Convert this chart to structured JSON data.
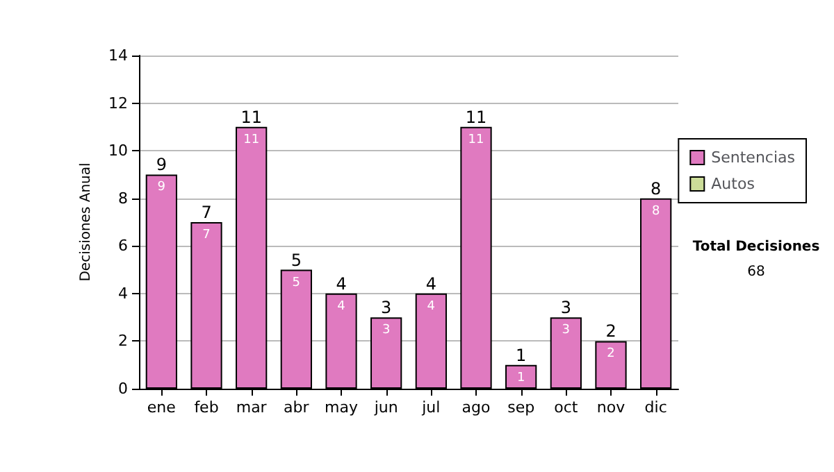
{
  "chart_data": {
    "type": "bar",
    "ylabel": "Decisiones Anual",
    "categories": [
      "ene",
      "feb",
      "mar",
      "abr",
      "may",
      "jun",
      "jul",
      "ago",
      "sep",
      "oct",
      "nov",
      "dic"
    ],
    "series": [
      {
        "name": "Sentencias",
        "color": "#e07ac0",
        "values": [
          9,
          7,
          11,
          5,
          4,
          3,
          4,
          11,
          1,
          3,
          2,
          8
        ]
      },
      {
        "name": "Autos",
        "color": "#ccdd99",
        "values": [
          null,
          null,
          null,
          null,
          null,
          null,
          null,
          null,
          null,
          null,
          null,
          null
        ]
      }
    ],
    "stacked": true,
    "data_labels": true,
    "totals": [
      "9",
      "7",
      "11",
      "5",
      "4",
      "3",
      "4",
      "11",
      "1",
      "3",
      "2",
      "8"
    ],
    "ylim": [
      0,
      14
    ],
    "yticks": [
      0,
      2,
      4,
      6,
      8,
      10,
      12,
      14
    ],
    "grid": "y",
    "legend": "right",
    "annotations": [
      "Total Decisiones",
      "68"
    ]
  }
}
